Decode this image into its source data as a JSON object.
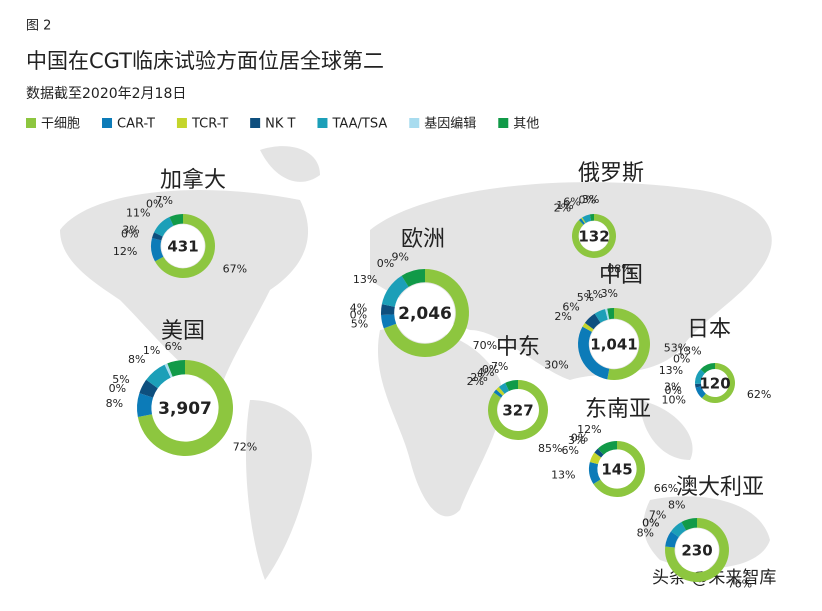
{
  "chart_data": {
    "type": "donut-map",
    "figure_label": "图 2",
    "title": "中国在CGT临床试验方面位居全球第二",
    "subtitle": "数据截至2020年2月18日",
    "source": "头条 @未来智库",
    "categories": [
      "干细胞",
      "CAR-T",
      "TCR-T",
      "NK T",
      "TAA/TSA",
      "基因编辑",
      "其他"
    ],
    "colors": [
      "#8dc63f",
      "#0c7bb8",
      "#c4d52b",
      "#0e4f7e",
      "#1c9fb8",
      "#a8dcef",
      "#119a48"
    ],
    "regions": [
      {
        "name": "加拿大",
        "total": "431",
        "values": [
          67,
          12,
          0,
          3,
          11,
          0,
          7
        ],
        "value_labels": [
          "67%",
          "12%",
          "0%",
          "3%",
          "11%",
          "0%",
          "7%"
        ]
      },
      {
        "name": "美国",
        "total": "3,907",
        "values": [
          72,
          8,
          0,
          5,
          8,
          1,
          6
        ],
        "value_labels": [
          "72%",
          "8%",
          "0%",
          "5%",
          "8%",
          "1%",
          "6%"
        ]
      },
      {
        "name": "欧洲",
        "total": "2,046",
        "values": [
          70,
          5,
          0,
          4,
          13,
          0,
          9
        ],
        "value_labels": [
          "70%",
          "5%",
          "0%",
          "4%",
          "13%",
          "0%",
          "9%"
        ]
      },
      {
        "name": "俄罗斯",
        "total": "132",
        "values": [
          88,
          2,
          1,
          null,
          6,
          0,
          3
        ],
        "value_labels": [
          "88%",
          "2%",
          "1%",
          null,
          "6%",
          "0%",
          "3%"
        ]
      },
      {
        "name": "中国",
        "total": "1,041",
        "values": [
          53,
          30,
          2,
          6,
          5,
          1,
          3
        ],
        "value_labels": [
          "53%",
          "30%",
          "2%",
          "6%",
          "5%",
          "1%",
          "3%"
        ]
      },
      {
        "name": "中东",
        "total": "327",
        "values": [
          85,
          2,
          2,
          null,
          4,
          0,
          7
        ],
        "value_labels": [
          "85%",
          "2%",
          "2%",
          null,
          "4%",
          "0%",
          "7%"
        ]
      },
      {
        "name": "日本",
        "total": "120",
        "values": [
          62,
          10,
          0,
          3,
          13,
          0,
          13
        ],
        "value_labels": [
          "62%",
          "10%",
          "0%",
          "3%",
          "13%",
          "0%",
          "13%"
        ]
      },
      {
        "name": "东南亚",
        "total": "145",
        "values": [
          66,
          13,
          6,
          3,
          0,
          null,
          12
        ],
        "value_labels": [
          "66%",
          "13%",
          "6%",
          "3%",
          "0%",
          null,
          "12%"
        ]
      },
      {
        "name": "澳大利亚",
        "total": "230",
        "values": [
          76,
          8,
          0,
          0,
          7,
          null,
          8
        ],
        "value_labels": [
          "76%",
          "8%",
          "0%",
          "0%",
          "7%",
          null,
          "8%"
        ]
      }
    ]
  }
}
